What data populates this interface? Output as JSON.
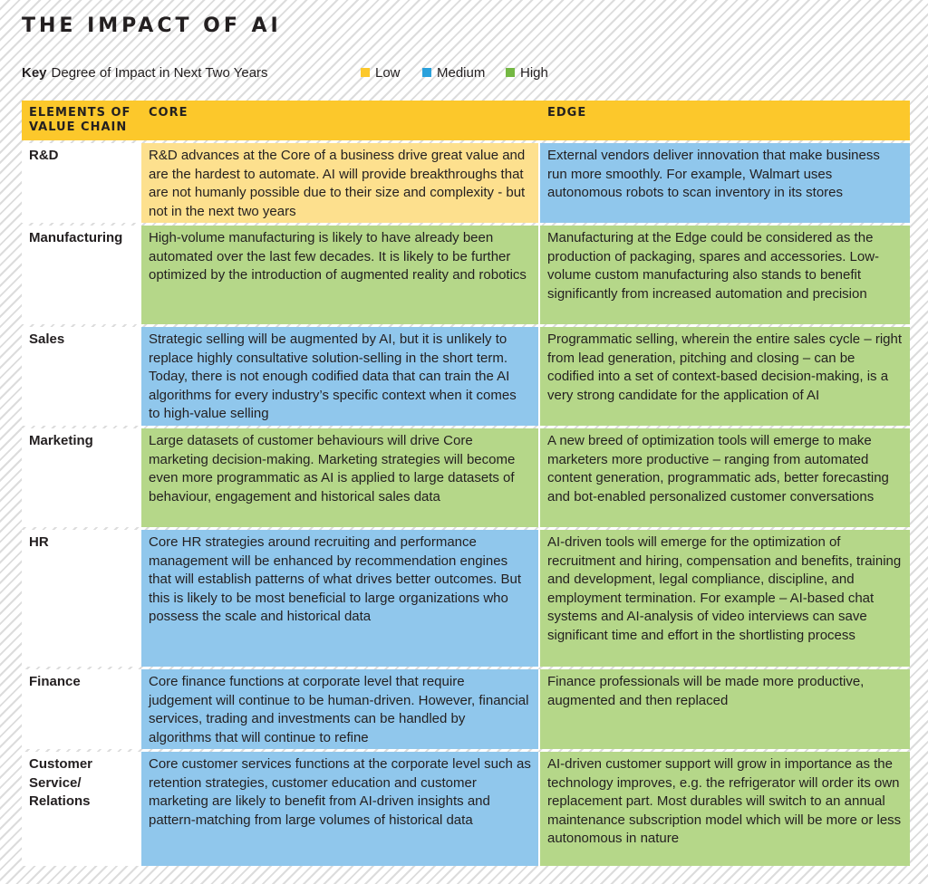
{
  "title": "THE IMPACT OF AI",
  "key": {
    "label": "Key",
    "text": "Degree of Impact in Next Two Years",
    "items": [
      {
        "label": "Low",
        "color": "#fcc82b"
      },
      {
        "label": "Medium",
        "color": "#2aa1dc"
      },
      {
        "label": "High",
        "color": "#74b843"
      }
    ]
  },
  "table": {
    "headers": [
      "ELEMENTS OF VALUE CHAIN",
      "CORE",
      "EDGE"
    ],
    "rows": [
      {
        "element": "R&D",
        "core": "R&D advances at the Core of a business drive great value and are the hardest to automate. AI will provide breakthroughs that are not humanly possible due to their size and complexity - but not in the next two years",
        "core_impact": "Low",
        "edge": "External vendors deliver innovation that make business run more smoothly. For example, Walmart uses autonomous robots to scan inventory in its stores",
        "edge_impact": "Medium"
      },
      {
        "element": "Manufacturing",
        "core": "High-volume manufacturing is likely to have already been automated over the last few decades. It is likely to be further optimized by the introduction of augmented reality and robotics",
        "core_impact": "High",
        "edge": "Manufacturing at the Edge could be considered as the production of packaging, spares and accessories. Low-volume custom manufacturing also stands to benefit significantly from increased automation and precision",
        "edge_impact": "High"
      },
      {
        "element": "Sales",
        "core": "Strategic selling will be augmented by AI, but it is unlikely to replace highly consultative solution-selling in the short term. Today, there is not enough codified data that can train the AI algorithms for every industry’s specific context when it comes to high-value selling",
        "core_impact": "Medium",
        "edge": "Programmatic selling, wherein the entire sales cycle – right from lead generation, pitching and closing – can be codified into a set of context-based decision-making, is a very strong candidate for the application of AI",
        "edge_impact": "High"
      },
      {
        "element": "Marketing",
        "core": "Large datasets of customer behaviours will drive Core marketing decision-making. Marketing strategies will become even more programmatic as AI is applied to large datasets of behaviour, engagement and historical sales data",
        "core_impact": "High",
        "edge": "A new breed of optimization tools will emerge to make marketers more productive – ranging from automated content generation, programmatic ads, better forecasting and bot-enabled personalized customer conversations",
        "edge_impact": "High"
      },
      {
        "element": "HR",
        "core": "Core HR strategies around recruiting and performance management will be enhanced by recommendation engines that will establish patterns of what drives better outcomes. But this is likely to be most beneficial to large organizations who possess the scale and historical data",
        "core_impact": "Medium",
        "edge": "AI-driven tools will emerge for the optimization of recruitment and hiring, compensation and benefits, training and development, legal compliance, discipline, and employment termination. For example – AI-based chat systems and AI-analysis of video interviews can save significant time and effort in the shortlisting process",
        "edge_impact": "High"
      },
      {
        "element": "Finance",
        "core": "Core finance functions at corporate level that require judgement will continue to be human-driven. However, financial services, trading and investments can be handled by algorithms that will continue to refine",
        "core_impact": "Medium",
        "edge": "Finance professionals will be made more productive, augmented and then replaced",
        "edge_impact": "High"
      },
      {
        "element": "Customer Service/ Relations",
        "core": "Core customer services functions at the corporate level such as retention strategies, customer education and customer marketing are likely to benefit from AI-driven insights and pattern-matching from large volumes of historical data",
        "core_impact": "Medium",
        "edge": "AI-driven customer support will grow in importance as the technology improves, e.g. the refrigerator will order its own replacement part. Most durables will switch to an annual maintenance subscription model which will be more or less autonomous in nature",
        "edge_impact": "High"
      }
    ]
  }
}
